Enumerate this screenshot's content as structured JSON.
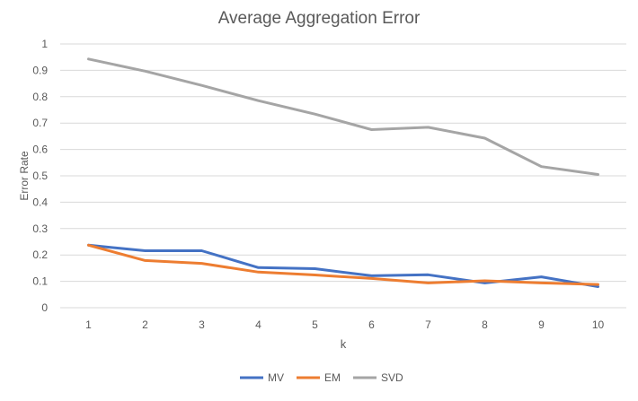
{
  "chart_data": {
    "type": "line",
    "title": "Average Aggregation Error",
    "xlabel": "k",
    "ylabel": "Error Rate",
    "x": [
      1,
      2,
      3,
      4,
      5,
      6,
      7,
      8,
      9,
      10
    ],
    "ylim": [
      0,
      1
    ],
    "yticks": [
      "0",
      "0.1",
      "0.2",
      "0.3",
      "0.4",
      "0.5",
      "0.6",
      "0.7",
      "0.8",
      "0.9",
      "1"
    ],
    "grid": "horizontal",
    "legend_position": "bottom",
    "series": [
      {
        "name": "MV",
        "color": "#4472C4",
        "values": [
          0.237,
          0.216,
          0.216,
          0.152,
          0.148,
          0.121,
          0.125,
          0.094,
          0.117,
          0.08
        ]
      },
      {
        "name": "EM",
        "color": "#ED7D31",
        "values": [
          0.237,
          0.179,
          0.168,
          0.135,
          0.124,
          0.111,
          0.094,
          0.102,
          0.094,
          0.088
        ]
      },
      {
        "name": "SVD",
        "color": "#A5A5A5",
        "values": [
          0.943,
          0.897,
          0.843,
          0.785,
          0.734,
          0.675,
          0.684,
          0.643,
          0.535,
          0.505
        ]
      }
    ]
  }
}
